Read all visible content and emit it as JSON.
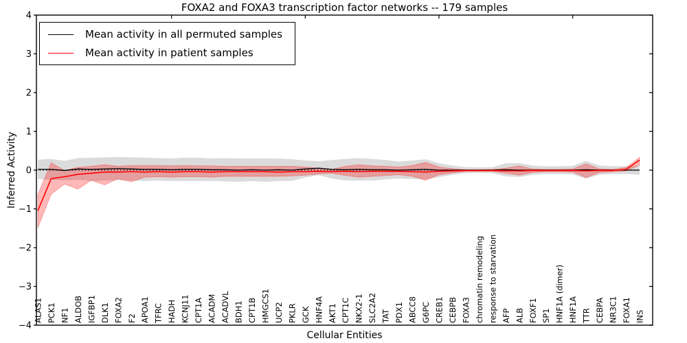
{
  "title": "FOXA2 and FOXA3 transcription factor networks -- 179 samples",
  "legend": [
    {
      "label": "Mean activity in all permuted samples",
      "color": "#000000"
    },
    {
      "label": "Mean activity in patient samples",
      "color": "#ff0000"
    }
  ],
  "colors": {
    "permuted_line": "#000000",
    "patient_line": "#ff0000",
    "permuted_band": "rgba(0,0,0,0.14)",
    "patient_band": "rgba(255,0,0,0.28)",
    "patient_band_edge": "rgba(255,0,0,0.35)"
  },
  "chart_data": {
    "type": "line",
    "title": "FOXA2 and FOXA3 transcription factor networks -- 179 samples",
    "xlabel": "Cellular Entities",
    "ylabel": "Inferred Activity",
    "ylim": [
      -4,
      4
    ],
    "yticks": [
      -4,
      -3,
      -2,
      -1,
      0,
      1,
      2,
      3,
      4
    ],
    "grid": false,
    "legend_position": "upper left",
    "zero_reference_line": "dotted",
    "categories": [
      "ALAS1",
      "PCK1",
      "NF1",
      "ALDOB",
      "IGFBP1",
      "DLK1",
      "FOXA2",
      "F2",
      "APOA1",
      "TFRC",
      "HADH",
      "KCNJ11",
      "CPT1A",
      "ACADM",
      "ACADVL",
      "BDH1",
      "CPT1B",
      "HMGCS1",
      "UCP2",
      "PKLR",
      "GCK",
      "HNF4A",
      "AKT1",
      "CPT1C",
      "NKX2-1",
      "SLC2A2",
      "TAT",
      "PDX1",
      "ABCC8",
      "G6PC",
      "CREB1",
      "CEBPB",
      "FOXA3",
      "chromatin remodeling",
      "response to starvation",
      "AFP",
      "ALB",
      "FOXF1",
      "SP1",
      "HNF1A (dimer)",
      "HNF1A",
      "TTR",
      "CEBPA",
      "NR3C1",
      "FOXA1",
      "INS"
    ],
    "series": [
      {
        "name": "Mean activity in all permuted samples",
        "values": [
          0.02,
          0.02,
          -0.01,
          0.03,
          0.02,
          0.03,
          0.04,
          0.03,
          0.02,
          0.02,
          0.01,
          0.02,
          0.02,
          0.01,
          0.01,
          0.0,
          0.01,
          0.0,
          0.01,
          0.0,
          0.03,
          0.05,
          0.02,
          0.01,
          0.02,
          0.01,
          0.01,
          0.0,
          0.01,
          0.02,
          0.0,
          0.0,
          0.0,
          0.0,
          0.0,
          0.01,
          0.0,
          0.0,
          0.0,
          0.0,
          0.0,
          0.01,
          0.0,
          0.0,
          0.0,
          0.0
        ],
        "band_upper": [
          0.27,
          0.29,
          0.24,
          0.31,
          0.32,
          0.33,
          0.34,
          0.33,
          0.32,
          0.31,
          0.3,
          0.32,
          0.32,
          0.3,
          0.31,
          0.3,
          0.3,
          0.3,
          0.3,
          0.28,
          0.25,
          0.23,
          0.26,
          0.29,
          0.31,
          0.29,
          0.26,
          0.22,
          0.25,
          0.28,
          0.18,
          0.12,
          0.08,
          0.07,
          0.08,
          0.18,
          0.18,
          0.12,
          0.1,
          0.1,
          0.11,
          0.24,
          0.12,
          0.1,
          0.1,
          0.12
        ],
        "band_lower": [
          -0.23,
          -0.25,
          -0.26,
          -0.25,
          -0.28,
          -0.27,
          -0.26,
          -0.27,
          -0.28,
          -0.27,
          -0.28,
          -0.28,
          -0.28,
          -0.28,
          -0.29,
          -0.3,
          -0.28,
          -0.3,
          -0.28,
          -0.28,
          -0.19,
          -0.13,
          -0.22,
          -0.27,
          -0.27,
          -0.27,
          -0.24,
          -0.22,
          -0.23,
          -0.24,
          -0.18,
          -0.12,
          -0.08,
          -0.07,
          -0.08,
          -0.16,
          -0.18,
          -0.12,
          -0.1,
          -0.1,
          -0.11,
          -0.22,
          -0.12,
          -0.1,
          -0.1,
          -0.12
        ]
      },
      {
        "name": "Mean activity in patient samples",
        "values": [
          -1.05,
          -0.22,
          -0.17,
          -0.11,
          -0.08,
          -0.05,
          -0.05,
          -0.04,
          -0.05,
          -0.04,
          -0.05,
          -0.04,
          -0.04,
          -0.05,
          -0.04,
          -0.04,
          -0.04,
          -0.04,
          -0.05,
          -0.04,
          -0.04,
          -0.03,
          -0.04,
          -0.03,
          -0.04,
          -0.03,
          -0.03,
          -0.03,
          -0.04,
          -0.05,
          -0.03,
          -0.02,
          -0.01,
          -0.01,
          -0.01,
          -0.02,
          -0.02,
          -0.01,
          -0.01,
          -0.01,
          -0.01,
          -0.02,
          -0.01,
          -0.01,
          0.02,
          0.26
        ],
        "band_upper": [
          -0.63,
          0.19,
          -0.01,
          0.07,
          0.1,
          0.14,
          0.1,
          0.12,
          0.12,
          0.12,
          0.11,
          0.12,
          0.11,
          0.11,
          0.1,
          0.1,
          0.1,
          0.1,
          0.1,
          0.1,
          0.08,
          0.05,
          0.02,
          0.1,
          0.14,
          0.11,
          0.1,
          0.08,
          0.12,
          0.2,
          0.08,
          0.04,
          0.01,
          0.01,
          0.02,
          0.05,
          0.11,
          0.03,
          0.02,
          0.02,
          0.03,
          0.16,
          0.03,
          0.02,
          0.07,
          0.33
        ],
        "band_lower": [
          -1.49,
          -0.62,
          -0.36,
          -0.49,
          -0.26,
          -0.38,
          -0.22,
          -0.3,
          -0.18,
          -0.17,
          -0.18,
          -0.17,
          -0.17,
          -0.18,
          -0.16,
          -0.16,
          -0.16,
          -0.16,
          -0.16,
          -0.15,
          -0.13,
          -0.1,
          -0.08,
          -0.14,
          -0.18,
          -0.16,
          -0.14,
          -0.12,
          -0.16,
          -0.26,
          -0.12,
          -0.07,
          -0.03,
          -0.03,
          -0.03,
          -0.08,
          -0.13,
          -0.06,
          -0.04,
          -0.04,
          -0.05,
          -0.19,
          -0.06,
          -0.04,
          -0.02,
          0.13
        ]
      }
    ],
    "top_axis_tick_indices": [
      10,
      20,
      30,
      40
    ]
  }
}
